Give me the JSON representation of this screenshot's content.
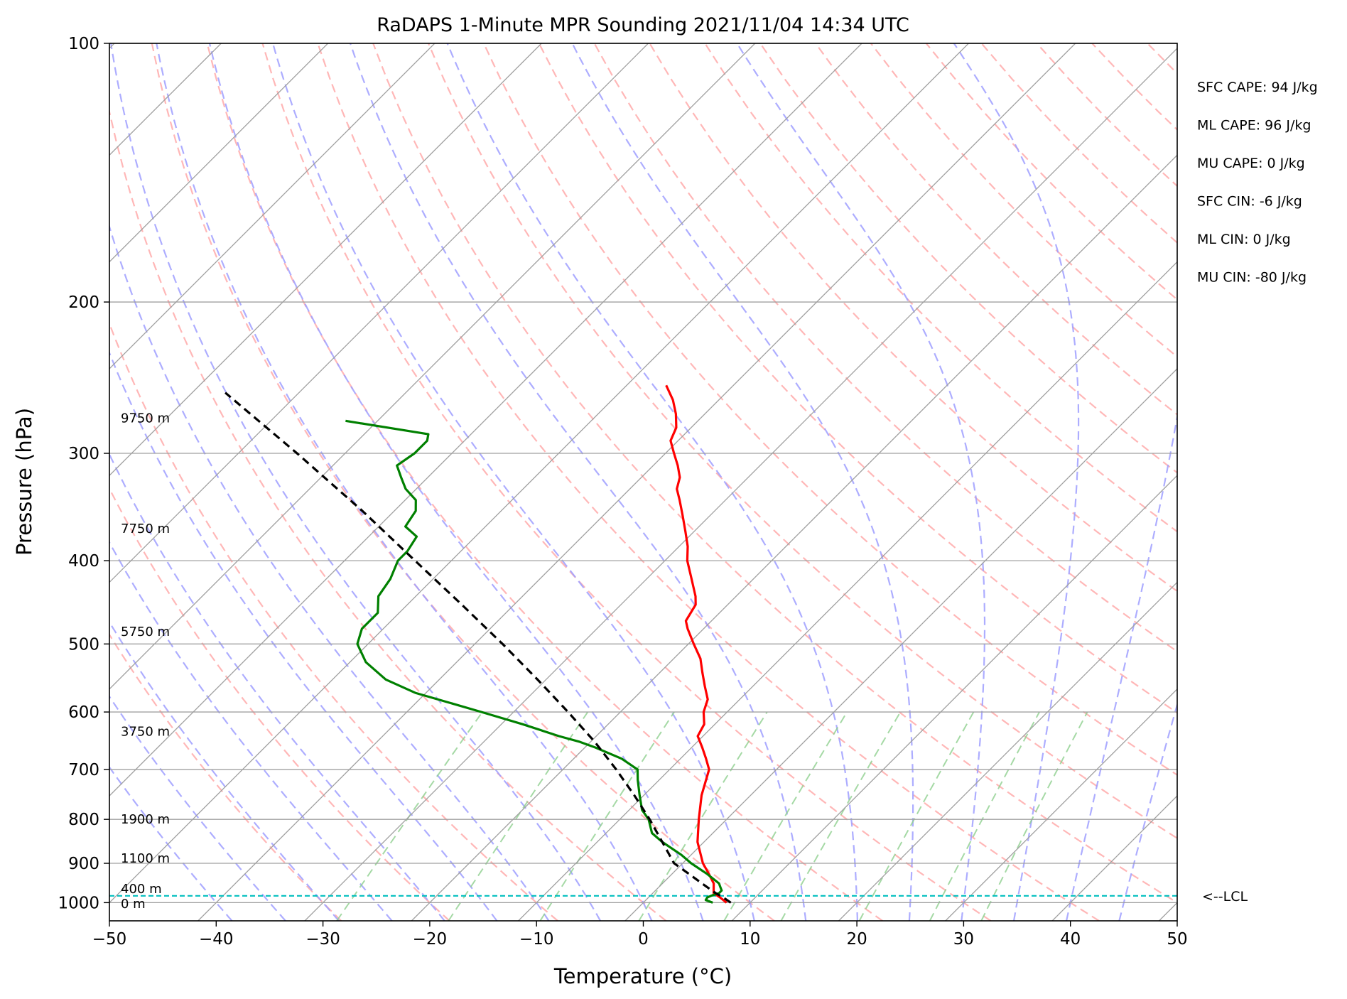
{
  "chart_data": {
    "type": "line",
    "title": "RaDAPS 1-Minute MPR Sounding 2021/11/04 14:34 UTC",
    "xlabel": "Temperature (°C)",
    "ylabel": "Pressure (hPa)",
    "xlim": [
      -50,
      50
    ],
    "ylim": [
      1050,
      100
    ],
    "y_scale": "log",
    "skew": true,
    "xticks": [
      "−50",
      "−40",
      "−30",
      "−20",
      "−10",
      "0",
      "10",
      "20",
      "30",
      "40",
      "50"
    ],
    "yticks": [
      "100",
      "200",
      "300",
      "400",
      "500",
      "600",
      "700",
      "800",
      "900",
      "1000"
    ],
    "grid": true,
    "series": [
      {
        "key": "temperature",
        "color": "#ff0000",
        "points": [
          [
            1000,
            7.8
          ],
          [
            985,
            6.6
          ],
          [
            975,
            5.7
          ],
          [
            950,
            4.8
          ],
          [
            925,
            3.4
          ],
          [
            900,
            1.9
          ],
          [
            850,
            -0.6
          ],
          [
            800,
            -2.6
          ],
          [
            750,
            -4.6
          ],
          [
            700,
            -6.3
          ],
          [
            680,
            -7.6
          ],
          [
            660,
            -9.0
          ],
          [
            640,
            -10.5
          ],
          [
            620,
            -11.0
          ],
          [
            600,
            -12.2
          ],
          [
            580,
            -13.0
          ],
          [
            560,
            -14.5
          ],
          [
            540,
            -16.0
          ],
          [
            520,
            -17.5
          ],
          [
            500,
            -19.5
          ],
          [
            480,
            -21.5
          ],
          [
            470,
            -22.4
          ],
          [
            450,
            -23.0
          ],
          [
            440,
            -23.8
          ],
          [
            420,
            -25.8
          ],
          [
            400,
            -27.9
          ],
          [
            385,
            -29.2
          ],
          [
            370,
            -30.8
          ],
          [
            355,
            -32.5
          ],
          [
            340,
            -34.3
          ],
          [
            330,
            -35.6
          ],
          [
            320,
            -36.4
          ],
          [
            310,
            -37.7
          ],
          [
            300,
            -39.2
          ],
          [
            290,
            -40.7
          ],
          [
            280,
            -41.4
          ],
          [
            270,
            -42.7
          ],
          [
            260,
            -44.3
          ],
          [
            250,
            -46.3
          ]
        ]
      },
      {
        "key": "dewpoint",
        "color": "#008000",
        "points": [
          [
            1000,
            6.5
          ],
          [
            993,
            5.6
          ],
          [
            986,
            5.5
          ],
          [
            980,
            5.8
          ],
          [
            975,
            6.2
          ],
          [
            968,
            6.2
          ],
          [
            960,
            5.8
          ],
          [
            950,
            5.3
          ],
          [
            925,
            3.2
          ],
          [
            900,
            0.8
          ],
          [
            880,
            -0.9
          ],
          [
            850,
            -3.9
          ],
          [
            830,
            -5.7
          ],
          [
            800,
            -7.3
          ],
          [
            780,
            -8.8
          ],
          [
            750,
            -10.4
          ],
          [
            720,
            -12.0
          ],
          [
            700,
            -13.0
          ],
          [
            680,
            -15.5
          ],
          [
            660,
            -19.0
          ],
          [
            650,
            -21.0
          ],
          [
            640,
            -23.5
          ],
          [
            620,
            -28.0
          ],
          [
            600,
            -33.0
          ],
          [
            570,
            -41.0
          ],
          [
            550,
            -45.0
          ],
          [
            525,
            -48.5
          ],
          [
            500,
            -51.0
          ],
          [
            480,
            -52.0
          ],
          [
            460,
            -52.0
          ],
          [
            440,
            -53.5
          ],
          [
            420,
            -54.0
          ],
          [
            400,
            -55.0
          ],
          [
            390,
            -55.0
          ],
          [
            375,
            -55.5
          ],
          [
            365,
            -57.5
          ],
          [
            350,
            -58.0
          ],
          [
            340,
            -59.0
          ],
          [
            330,
            -61.0
          ],
          [
            320,
            -62.5
          ],
          [
            310,
            -64.0
          ],
          [
            300,
            -63.5
          ],
          [
            290,
            -63.5
          ],
          [
            285,
            -64.0
          ],
          [
            275,
            -73.0
          ]
        ]
      },
      {
        "key": "parcel",
        "color": "#000000",
        "style": "dashed",
        "points": [
          [
            1000,
            8.2
          ],
          [
            985,
            6.9
          ],
          [
            975,
            5.9
          ],
          [
            950,
            3.7
          ],
          [
            925,
            1.5
          ],
          [
            900,
            -0.8
          ],
          [
            850,
            -3.9
          ],
          [
            800,
            -7.2
          ],
          [
            750,
            -10.9
          ],
          [
            700,
            -15.0
          ],
          [
            650,
            -19.6
          ],
          [
            600,
            -24.9
          ],
          [
            550,
            -30.8
          ],
          [
            500,
            -37.4
          ],
          [
            450,
            -44.9
          ],
          [
            400,
            -53.4
          ],
          [
            350,
            -63.0
          ],
          [
            300,
            -74.5
          ],
          [
            255,
            -86.9
          ]
        ]
      }
    ],
    "lcl": {
      "pressure": 982,
      "label": "<--LCL",
      "color": "#00bfbf"
    },
    "height_labels": [
      {
        "text": "9750 m",
        "p": 273
      },
      {
        "text": "7750 m",
        "p": 367
      },
      {
        "text": "5750 m",
        "p": 484
      },
      {
        "text": "3750 m",
        "p": 632
      },
      {
        "text": "1900 m",
        "p": 800
      },
      {
        "text": "1100 m",
        "p": 888
      },
      {
        "text": "400 m",
        "p": 964
      },
      {
        "text": "0 m",
        "p": 1003
      }
    ],
    "parameters": [
      "SFC CAPE: 94 J/kg",
      "ML CAPE: 96 J/kg",
      "MU CAPE: 0 J/kg",
      "SFC CIN: -6 J/kg",
      "ML CIN: 0 J/kg",
      "MU CIN: -80 J/kg"
    ],
    "background": {
      "isotherm_color": "#a0a0a0",
      "dry_adiabat_color": "#ff9f9f",
      "moist_adiabat_color": "#9f9fff",
      "mixing_ratio_color": "#8fcf8f"
    }
  }
}
